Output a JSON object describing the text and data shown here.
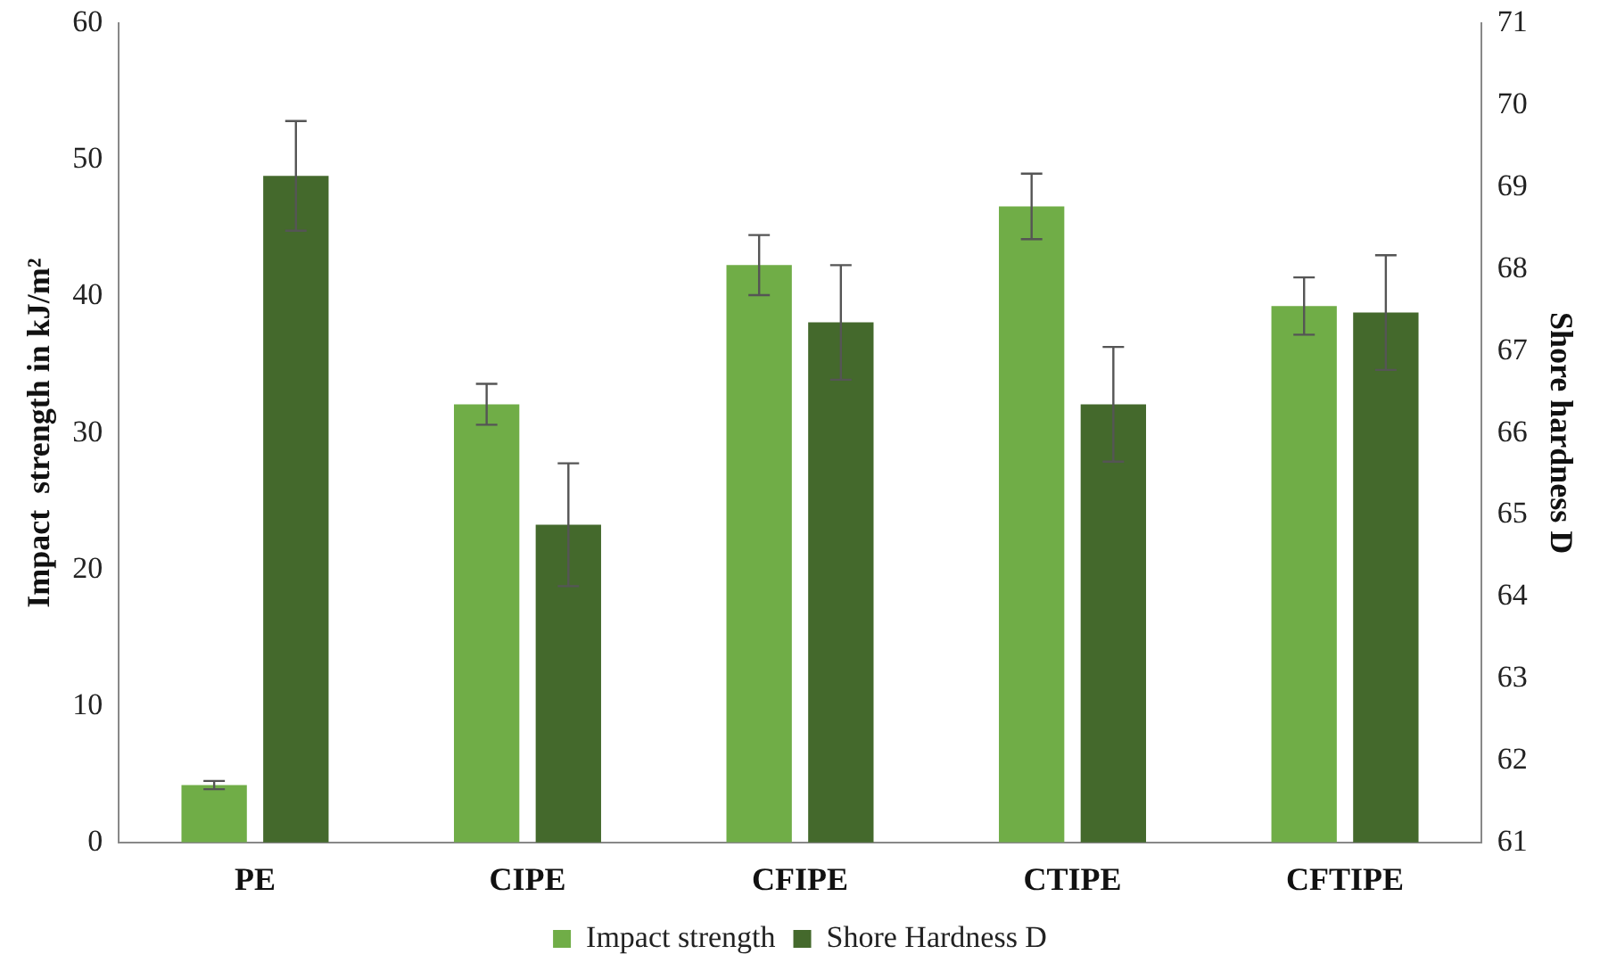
{
  "chart_data": {
    "type": "bar",
    "categories": [
      "PE",
      "CIPE",
      "CFIPE",
      "CTIPE",
      "CFTIPE"
    ],
    "ylabel": "Impact  strength in kJ/m²",
    "y2label": "Shore hardness D",
    "series": [
      {
        "name": "Impact strength",
        "color": "#70ad47",
        "values": [
          4.2,
          32.1,
          42.3,
          46.6,
          39.3
        ],
        "errors": [
          0.3,
          1.5,
          2.2,
          2.4,
          2.1
        ]
      },
      {
        "name": "Shore Hardness D",
        "color": "#44692c",
        "axis": "y2",
        "values": [
          69.14,
          64.88,
          67.35,
          66.35,
          67.47
        ],
        "errors": [
          0.67,
          0.75,
          0.7,
          0.7,
          0.7
        ]
      }
    ],
    "ylim": [
      0,
      60
    ],
    "yticks": [
      0,
      10,
      20,
      30,
      40,
      50,
      60
    ],
    "y2lim": [
      61,
      71
    ],
    "y2ticks": [
      61,
      62,
      63,
      64,
      65,
      66,
      67,
      68,
      69,
      70,
      71
    ],
    "legend": "bottom"
  }
}
